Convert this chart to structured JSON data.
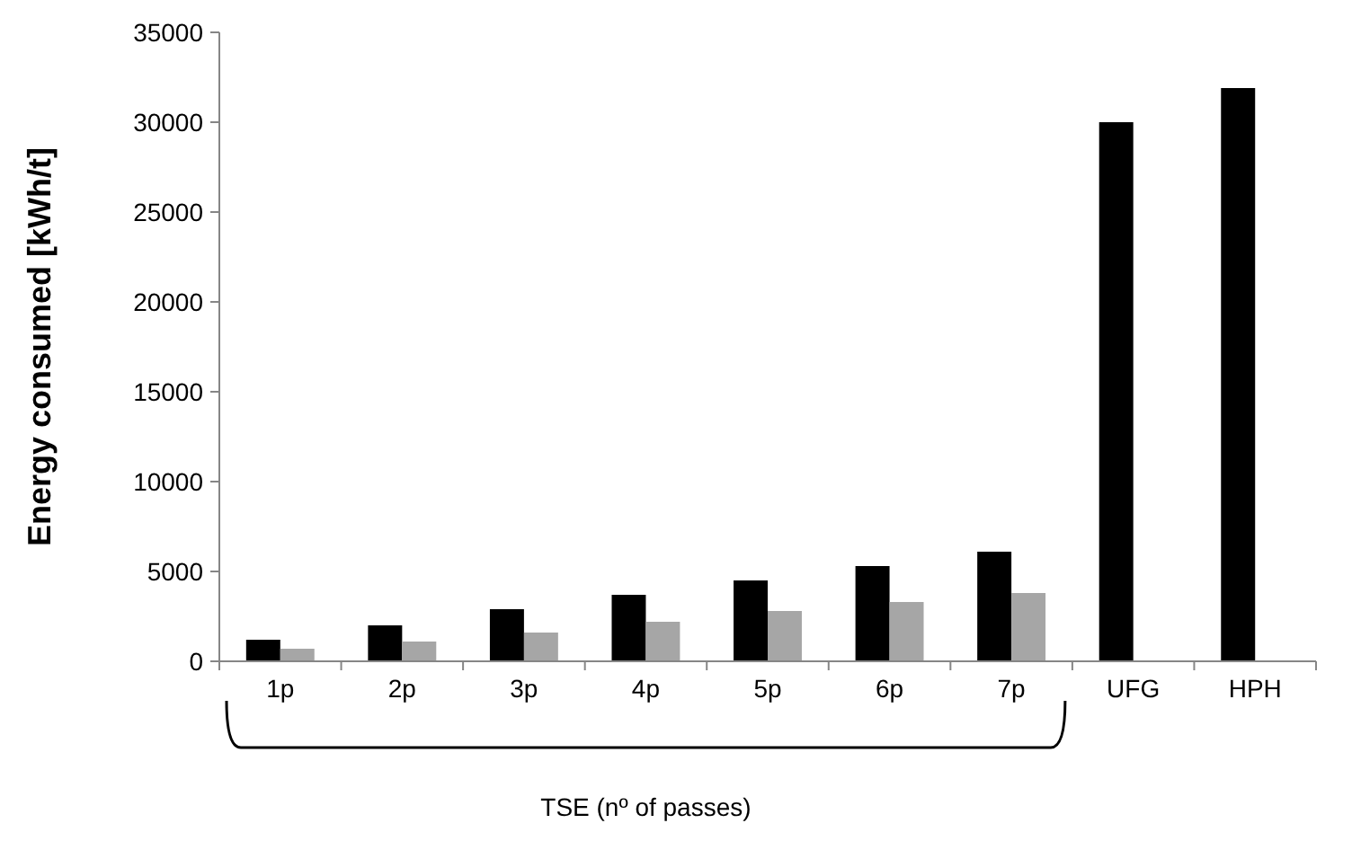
{
  "chart_data": {
    "type": "bar",
    "xlabel": "TSE (nº of passes)",
    "ylabel": "Energy consumed [kWh/t]",
    "categories": [
      "1p",
      "2p",
      "3p",
      "4p",
      "5p",
      "6p",
      "7p",
      "UFG",
      "HPH"
    ],
    "series": [
      {
        "color": "#000000",
        "values": [
          1200,
          2000,
          2900,
          3700,
          4500,
          5300,
          6100,
          30000,
          31900
        ]
      },
      {
        "color": "#a6a6a6",
        "values": [
          700,
          1100,
          1600,
          2200,
          2800,
          3300,
          3800,
          null,
          null
        ]
      }
    ],
    "ylim": [
      0,
      35000
    ],
    "yticks": [
      0,
      5000,
      10000,
      15000,
      20000,
      25000,
      30000,
      35000
    ],
    "grid": false
  }
}
